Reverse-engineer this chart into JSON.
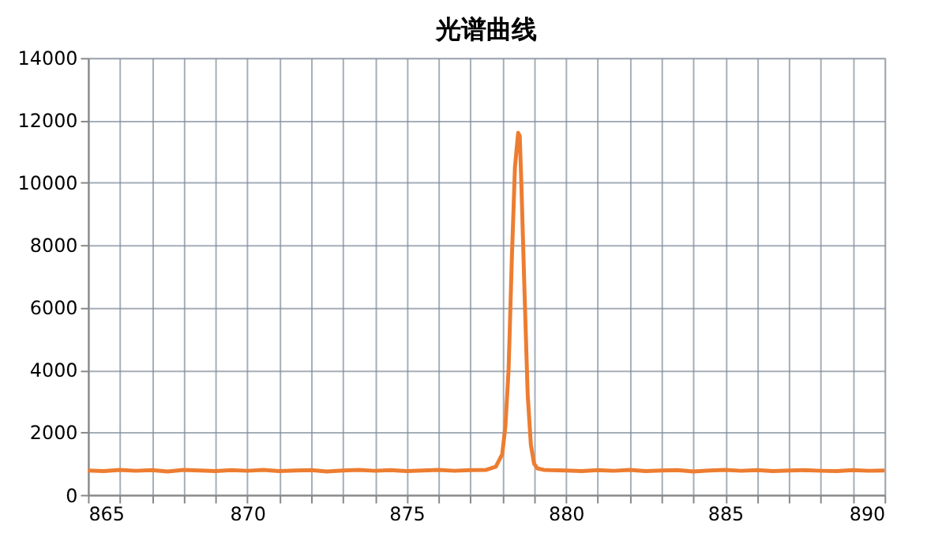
{
  "chart_data": {
    "type": "line",
    "title": "光谱曲线",
    "x": [
      865,
      865.5,
      866,
      866.5,
      867,
      867.5,
      868,
      868.5,
      869,
      869.5,
      870,
      870.5,
      871,
      871.5,
      872,
      872.5,
      873,
      873.5,
      874,
      874.5,
      875,
      875.5,
      876,
      876.5,
      877,
      877.5,
      877.8,
      878,
      878.1,
      878.2,
      878.3,
      878.4,
      878.5,
      878.55,
      878.6,
      878.7,
      878.8,
      878.9,
      879,
      879.1,
      879.3,
      879.5,
      880,
      880.5,
      881,
      881.5,
      882,
      882.5,
      883,
      883.5,
      884,
      884.5,
      885,
      885.5,
      886,
      886.5,
      887,
      887.5,
      888,
      888.5,
      889,
      889.5,
      890
    ],
    "series": [
      {
        "color": "#ed7d31",
        "values": [
          780,
          760,
          800,
          770,
          790,
          750,
          800,
          780,
          760,
          790,
          770,
          800,
          760,
          780,
          790,
          750,
          780,
          800,
          770,
          790,
          760,
          780,
          800,
          770,
          790,
          800,
          900,
          1300,
          2200,
          4000,
          7500,
          10500,
          11600,
          11500,
          10000,
          6500,
          3200,
          1600,
          1000,
          850,
          800,
          790,
          780,
          760,
          790,
          770,
          800,
          760,
          780,
          790,
          750,
          780,
          800,
          770,
          790,
          760,
          780,
          790,
          770,
          760,
          790,
          770,
          780
        ]
      }
    ],
    "xlim": [
      865,
      890
    ],
    "ylim": [
      0,
      14000
    ],
    "xticks": [
      865,
      {
        "value": 866,
        "label": null
      },
      {
        "value": 867,
        "label": null
      },
      {
        "value": 868,
        "label": null
      },
      {
        "value": 869,
        "label": null
      },
      870,
      {
        "value": 871,
        "label": null
      },
      {
        "value": 872,
        "label": null
      },
      {
        "value": 873,
        "label": null
      },
      {
        "value": 874,
        "label": null
      },
      875,
      {
        "value": 876,
        "label": null
      },
      {
        "value": 877,
        "label": null
      },
      {
        "value": 878,
        "label": null
      },
      {
        "value": 879,
        "label": null
      },
      880,
      {
        "value": 881,
        "label": null
      },
      {
        "value": 882,
        "label": null
      },
      {
        "value": 883,
        "label": null
      },
      {
        "value": 884,
        "label": null
      },
      885,
      {
        "value": 886,
        "label": null
      },
      {
        "value": 887,
        "label": null
      },
      {
        "value": 888,
        "label": null
      },
      {
        "value": 889,
        "label": null
      },
      890
    ],
    "yticks": [
      0,
      2000,
      4000,
      6000,
      8000,
      10000,
      12000,
      14000
    ],
    "grid": true,
    "legend": false,
    "marker": "none",
    "line_style": "solid"
  }
}
